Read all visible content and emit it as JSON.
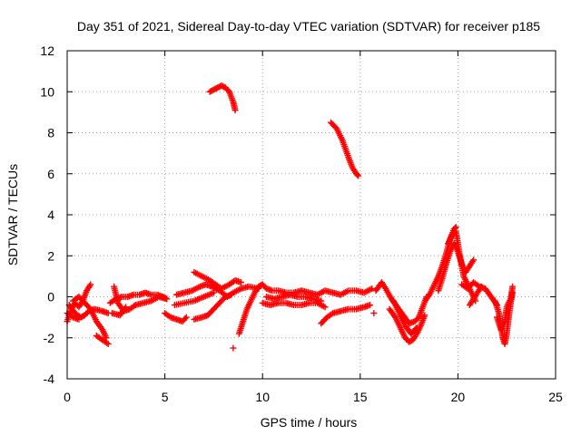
{
  "chart_data": {
    "type": "scatter",
    "title": "Day 351 of 2021, Sidereal Day-to-day VTEC variation (SDTVAR) for receiver p185",
    "xlabel": "GPS time / hours",
    "ylabel": "SDTVAR / TECUs",
    "xlim": [
      0,
      25
    ],
    "ylim": [
      -4,
      12
    ],
    "xticks": [
      0,
      5,
      10,
      15,
      20,
      25
    ],
    "yticks": [
      -4,
      -2,
      0,
      2,
      4,
      6,
      8,
      10,
      12
    ],
    "grid": true,
    "marker": "plus",
    "series": [
      {
        "name": "SDTVAR",
        "color": "#ff0000",
        "tracks": [
          [
            [
              0.0,
              -1.2
            ],
            [
              0.2,
              -0.6
            ],
            [
              0.4,
              -0.3
            ],
            [
              0.6,
              -0.5
            ],
            [
              0.8,
              -0.2
            ],
            [
              1.0,
              0.3
            ],
            [
              1.2,
              0.6
            ]
          ],
          [
            [
              0.1,
              -0.4
            ],
            [
              0.4,
              -0.8
            ],
            [
              0.7,
              -1.0
            ],
            [
              0.9,
              -0.9
            ],
            [
              1.1,
              -0.7
            ],
            [
              1.4,
              -0.6
            ],
            [
              1.8,
              -0.7
            ],
            [
              2.1,
              -0.8
            ]
          ],
          [
            [
              0.3,
              -0.2
            ],
            [
              0.6,
              0.0
            ],
            [
              0.9,
              -0.3
            ],
            [
              1.2,
              -0.6
            ],
            [
              1.5,
              -1.2
            ],
            [
              1.8,
              -1.6
            ],
            [
              2.0,
              -2.0
            ]
          ],
          [
            [
              1.5,
              -1.9
            ],
            [
              1.8,
              -2.1
            ],
            [
              2.1,
              -2.3
            ]
          ],
          [
            [
              0.0,
              -0.8
            ],
            [
              0.3,
              -1.0
            ],
            [
              0.6,
              -1.1
            ]
          ],
          [
            [
              2.2,
              -0.3
            ],
            [
              2.5,
              -0.1
            ],
            [
              2.8,
              0.0
            ],
            [
              3.1,
              0.0
            ],
            [
              3.4,
              0.1
            ],
            [
              3.7,
              0.1
            ],
            [
              4.0,
              0.2
            ],
            [
              4.3,
              0.1
            ],
            [
              4.6,
              0.1
            ],
            [
              4.9,
              0.0
            ],
            [
              5.1,
              -0.1
            ]
          ],
          [
            [
              2.4,
              0.5
            ],
            [
              2.6,
              -0.3
            ],
            [
              2.9,
              -0.7
            ],
            [
              3.2,
              -0.6
            ],
            [
              3.5,
              -0.4
            ],
            [
              3.9,
              -0.3
            ],
            [
              4.3,
              -0.2
            ],
            [
              4.7,
              0.0
            ],
            [
              5.1,
              -0.1
            ]
          ],
          [
            [
              2.3,
              -0.8
            ],
            [
              2.7,
              -0.9
            ],
            [
              3.0,
              -0.5
            ]
          ],
          [
            [
              5.0,
              -0.8
            ],
            [
              5.3,
              -1.0
            ],
            [
              5.6,
              -1.1
            ],
            [
              5.9,
              -1.2
            ],
            [
              6.1,
              -1.0
            ]
          ],
          [
            [
              5.6,
              0.1
            ],
            [
              6.0,
              0.2
            ],
            [
              6.4,
              0.3
            ],
            [
              6.8,
              0.5
            ],
            [
              7.1,
              0.6
            ],
            [
              7.4,
              0.5
            ],
            [
              7.8,
              0.3
            ],
            [
              8.2,
              0.0
            ],
            [
              8.5,
              0.2
            ],
            [
              8.9,
              0.4
            ],
            [
              9.3,
              0.5
            ],
            [
              9.8,
              0.4
            ]
          ],
          [
            [
              6.5,
              1.2
            ],
            [
              6.9,
              1.0
            ],
            [
              7.3,
              0.8
            ],
            [
              7.6,
              0.6
            ],
            [
              7.9,
              0.4
            ],
            [
              8.3,
              0.6
            ],
            [
              8.6,
              0.8
            ],
            [
              8.9,
              0.7
            ]
          ],
          [
            [
              6.5,
              -1.1
            ],
            [
              6.9,
              -1.0
            ],
            [
              7.2,
              -0.9
            ],
            [
              7.5,
              -0.6
            ],
            [
              7.8,
              -0.3
            ],
            [
              8.1,
              0.0
            ],
            [
              8.4,
              0.1
            ]
          ],
          [
            [
              5.5,
              -0.4
            ],
            [
              6.0,
              -0.3
            ],
            [
              6.5,
              -0.2
            ],
            [
              7.0,
              0.0
            ],
            [
              7.5,
              0.2
            ]
          ],
          [
            [
              7.3,
              10.0
            ],
            [
              7.5,
              10.1
            ],
            [
              7.7,
              10.2
            ],
            [
              7.9,
              10.3
            ],
            [
              8.1,
              10.2
            ],
            [
              8.3,
              10.0
            ],
            [
              8.5,
              9.5
            ],
            [
              8.6,
              9.1
            ]
          ],
          [
            [
              8.5,
              -2.5
            ]
          ],
          [
            [
              8.8,
              -1.8
            ],
            [
              9.0,
              -1.2
            ],
            [
              9.2,
              -0.6
            ],
            [
              9.4,
              -0.2
            ],
            [
              9.6,
              0.2
            ],
            [
              9.8,
              0.5
            ],
            [
              10.0,
              0.6
            ],
            [
              10.2,
              0.4
            ],
            [
              10.5,
              0.3
            ],
            [
              10.8,
              0.3
            ],
            [
              11.2,
              0.2
            ],
            [
              11.6,
              0.2
            ],
            [
              12.0,
              0.3
            ],
            [
              12.4,
              0.2
            ],
            [
              12.8,
              0.1
            ],
            [
              13.2,
              0.3
            ],
            [
              13.6,
              0.2
            ],
            [
              14.0,
              0.1
            ],
            [
              14.4,
              0.3
            ],
            [
              14.8,
              0.3
            ],
            [
              15.2,
              0.2
            ],
            [
              15.6,
              0.4
            ]
          ],
          [
            [
              10.0,
              -0.3
            ],
            [
              10.4,
              -0.4
            ],
            [
              10.8,
              -0.3
            ],
            [
              11.2,
              -0.3
            ],
            [
              11.6,
              -0.4
            ],
            [
              12.0,
              -0.4
            ],
            [
              12.4,
              -0.3
            ],
            [
              12.8,
              -0.3
            ],
            [
              13.2,
              -0.5
            ]
          ],
          [
            [
              10.2,
              0.0
            ],
            [
              10.6,
              -0.1
            ],
            [
              11.0,
              0.0
            ],
            [
              11.4,
              0.1
            ],
            [
              11.8,
              0.0
            ],
            [
              12.2,
              0.0
            ],
            [
              12.6,
              -0.1
            ],
            [
              13.0,
              -0.2
            ]
          ],
          [
            [
              13.0,
              -1.3
            ],
            [
              13.3,
              -1.0
            ],
            [
              13.6,
              -0.8
            ],
            [
              14.0,
              -0.7
            ],
            [
              14.4,
              -0.6
            ],
            [
              14.8,
              -0.6
            ],
            [
              15.2,
              -0.5
            ],
            [
              15.5,
              -0.4
            ]
          ],
          [
            [
              13.5,
              8.5
            ],
            [
              13.8,
              8.2
            ],
            [
              14.1,
              7.6
            ],
            [
              14.4,
              6.8
            ],
            [
              14.6,
              6.3
            ],
            [
              14.8,
              6.0
            ],
            [
              14.9,
              5.9
            ]
          ],
          [
            [
              15.7,
              -0.8
            ]
          ],
          [
            [
              15.8,
              0.3
            ],
            [
              16.1,
              0.7
            ],
            [
              16.3,
              0.4
            ],
            [
              16.6,
              -0.1
            ],
            [
              16.9,
              -0.5
            ],
            [
              17.2,
              -0.9
            ],
            [
              17.5,
              -1.3
            ],
            [
              17.8,
              -1.2
            ],
            [
              18.0,
              -1.0
            ],
            [
              18.2,
              -0.5
            ],
            [
              18.4,
              0.0
            ]
          ],
          [
            [
              16.5,
              -0.6
            ],
            [
              16.8,
              -1.0
            ],
            [
              17.1,
              -1.6
            ],
            [
              17.3,
              -2.0
            ],
            [
              17.5,
              -2.2
            ],
            [
              17.7,
              -2.1
            ],
            [
              17.9,
              -1.8
            ],
            [
              18.1,
              -1.4
            ],
            [
              18.3,
              -0.9
            ]
          ],
          [
            [
              16.7,
              -0.2
            ],
            [
              17.0,
              -0.8
            ],
            [
              17.3,
              -1.4
            ],
            [
              17.6,
              -1.8
            ],
            [
              17.9,
              -1.5
            ]
          ],
          [
            [
              18.4,
              -0.1
            ],
            [
              18.6,
              0.2
            ],
            [
              18.8,
              0.6
            ],
            [
              19.0,
              1.0
            ],
            [
              19.2,
              1.5
            ],
            [
              19.4,
              2.1
            ],
            [
              19.6,
              2.8
            ],
            [
              19.8,
              3.3
            ],
            [
              19.9,
              3.4
            ]
          ],
          [
            [
              19.0,
              0.3
            ],
            [
              19.2,
              0.9
            ],
            [
              19.4,
              1.6
            ],
            [
              19.6,
              2.2
            ],
            [
              19.8,
              2.6
            ],
            [
              20.0,
              2.2
            ],
            [
              20.2,
              1.6
            ],
            [
              20.4,
              1.2
            ],
            [
              20.6,
              1.5
            ],
            [
              20.8,
              1.8
            ]
          ],
          [
            [
              19.5,
              2.6
            ],
            [
              19.7,
              3.0
            ],
            [
              19.9,
              3.2
            ],
            [
              20.1,
              2.0
            ],
            [
              20.3,
              1.0
            ],
            [
              20.5,
              0.6
            ],
            [
              20.7,
              0.2
            ],
            [
              20.9,
              -0.2
            ]
          ],
          [
            [
              20.2,
              0.6
            ],
            [
              20.5,
              0.4
            ],
            [
              20.8,
              0.7
            ],
            [
              21.1,
              0.5
            ],
            [
              21.4,
              0.4
            ],
            [
              21.7,
              0.0
            ],
            [
              22.0,
              -0.4
            ]
          ],
          [
            [
              20.6,
              -0.4
            ],
            [
              20.8,
              -0.1
            ],
            [
              21.0,
              0.2
            ],
            [
              21.2,
              0.5
            ]
          ],
          [
            [
              21.9,
              -0.2
            ],
            [
              22.1,
              -0.8
            ],
            [
              22.2,
              -1.4
            ],
            [
              22.3,
              -2.0
            ],
            [
              22.4,
              -2.3
            ],
            [
              22.5,
              -1.8
            ],
            [
              22.6,
              -1.0
            ],
            [
              22.7,
              -0.3
            ],
            [
              22.8,
              0.2
            ]
          ],
          [
            [
              22.0,
              -1.0
            ],
            [
              22.2,
              -1.6
            ],
            [
              22.4,
              -1.2
            ],
            [
              22.5,
              -0.5
            ],
            [
              22.7,
              -0.1
            ],
            [
              22.8,
              0.5
            ]
          ]
        ]
      }
    ]
  }
}
